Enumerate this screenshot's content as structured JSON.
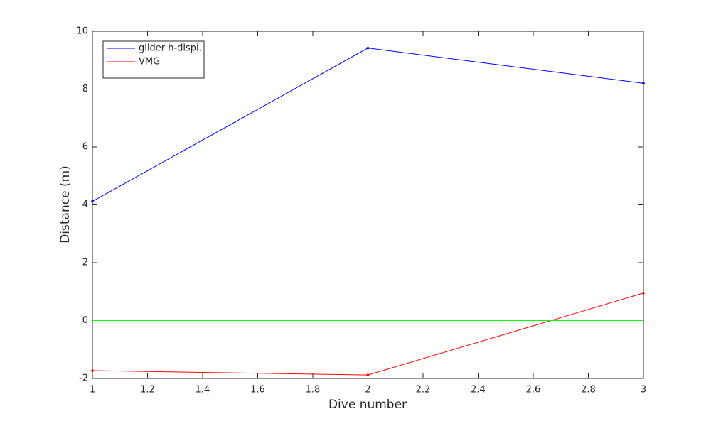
{
  "chart_data": {
    "type": "line",
    "x_label": "Dive number",
    "y_label": "Distance (m)",
    "x": [
      1,
      2,
      3
    ],
    "series": [
      {
        "name": "glider h-displ.",
        "color": "#0000ff",
        "values": [
          4.12,
          9.42,
          8.2
        ]
      },
      {
        "name": "VMG",
        "color": "#ff0000",
        "values": [
          -1.73,
          -1.88,
          0.95
        ]
      },
      {
        "color": "#00ff00",
        "values": [
          0,
          0,
          0
        ]
      }
    ],
    "xlim": [
      1,
      3
    ],
    "xticks": [
      1,
      1.2,
      1.4,
      1.6,
      1.8,
      2,
      2.2,
      2.4,
      2.6,
      2.8,
      3
    ],
    "ylim": [
      -2,
      10
    ],
    "yticks": [
      -2,
      0,
      2,
      4,
      6,
      8,
      10
    ],
    "legend": "upper left"
  }
}
